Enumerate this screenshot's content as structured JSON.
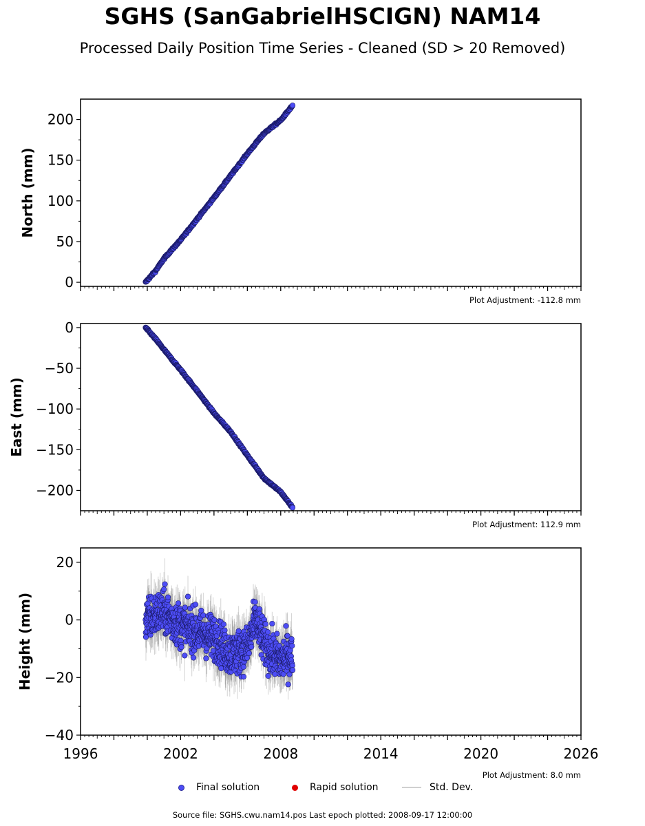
{
  "title": "SGHS (SanGabrielHSCIGN) NAM14",
  "subtitle": "Processed Daily Position Time Series - Cleaned (SD > 20 Removed)",
  "legend": {
    "final": "Final solution",
    "rapid": "Rapid solution",
    "stddev": "Std. Dev."
  },
  "source_text": "Source file: SGHS.cwu.nam14.pos  Last epoch plotted: 2008-09-17 12:00:00",
  "colors": {
    "final": "#4d4df5",
    "final_edge": "#1a1a66",
    "rapid": "#e00000",
    "stddev": "#808080"
  },
  "chart_data": [
    {
      "type": "scatter",
      "ylabel": "North (mm)",
      "adjustment": "Plot Adjustment: -112.8 mm",
      "xlim": [
        1996,
        2026
      ],
      "ylim": [
        -5,
        225
      ],
      "yticks": [
        0,
        50,
        100,
        150,
        200
      ],
      "ytick_labels": [
        "0",
        "50",
        "100",
        "150",
        "200"
      ],
      "xticks": [
        1996,
        2002,
        2008,
        2014,
        2020,
        2026
      ],
      "xtick_labels": [],
      "x_start": 1999.9,
      "x_end": 2008.71,
      "series": [
        {
          "x": [
            1999.9,
            2000.5,
            2001.0,
            2002.0,
            2003.0,
            2004.0,
            2005.0,
            2006.0,
            2007.0,
            2008.0,
            2008.71
          ],
          "y": [
            0,
            14,
            29,
            52,
            78,
            104,
            131,
            158,
            183,
            199,
            217
          ]
        }
      ]
    },
    {
      "type": "scatter",
      "ylabel": "East (mm)",
      "adjustment": "Plot Adjustment: 112.9 mm",
      "xlim": [
        1996,
        2026
      ],
      "ylim": [
        -225,
        5
      ],
      "yticks": [
        0,
        -50,
        -100,
        -150,
        -200
      ],
      "ytick_labels": [
        "0",
        "−50",
        "−100",
        "−150",
        "−200"
      ],
      "xticks": [
        1996,
        2002,
        2008,
        2014,
        2020,
        2026
      ],
      "xtick_labels": [],
      "x_start": 1999.9,
      "x_end": 2008.71,
      "series": [
        {
          "x": [
            1999.9,
            2000.5,
            2001.0,
            2002.0,
            2003.0,
            2004.0,
            2005.0,
            2006.0,
            2007.0,
            2008.0,
            2008.71
          ],
          "y": [
            0,
            -14,
            -27,
            -52,
            -78,
            -105,
            -128,
            -157,
            -185,
            -202,
            -221
          ]
        }
      ]
    },
    {
      "type": "scatter",
      "ylabel": "Height (mm)",
      "adjustment": "Plot Adjustment: 8.0 mm",
      "xlim": [
        1996,
        2026
      ],
      "ylim": [
        -40,
        25
      ],
      "yticks": [
        20,
        0,
        -20,
        -40
      ],
      "ytick_labels": [
        "20",
        "0",
        "−20",
        "−40"
      ],
      "xticks": [
        1996,
        2002,
        2008,
        2014,
        2020,
        2026
      ],
      "xtick_labels": [
        "1996",
        "2002",
        "2008",
        "2014",
        "2020",
        "2026"
      ],
      "x_start": 1999.9,
      "x_end": 2008.71,
      "series": [
        {
          "x": [
            1999.9,
            2000.5,
            2001.0,
            2001.5,
            2002.0,
            2003.0,
            2004.0,
            2005.0,
            2006.0,
            2006.5,
            2007.0,
            2007.5,
            2008.0,
            2008.5,
            2008.71
          ],
          "y": [
            0,
            2,
            3,
            0,
            -2,
            -4,
            -6,
            -12,
            -10,
            0,
            -8,
            -12,
            -14,
            -12,
            -13
          ],
          "spread": 6
        }
      ]
    }
  ]
}
